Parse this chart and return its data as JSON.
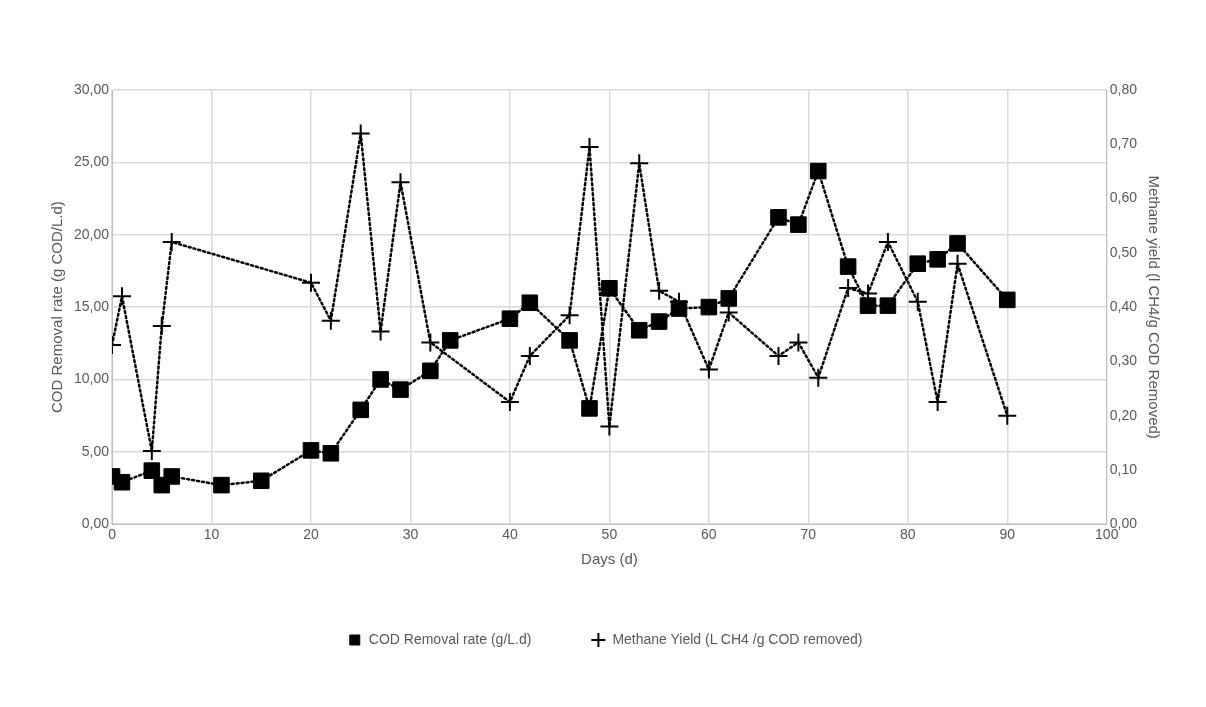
{
  "chart_data": {
    "type": "line",
    "xlabel": "Days (d)",
    "ylabel": "COD Removal rate (g COD/L.d)",
    "y2label": "Methane yield (l CH4/g COD Removed)",
    "xlim": [
      0,
      100
    ],
    "xticks": [
      0,
      10,
      20,
      30,
      40,
      50,
      60,
      70,
      80,
      90,
      100
    ],
    "ylim": [
      0,
      30
    ],
    "yticks": [
      {
        "value": 0,
        "label": "0,00"
      },
      {
        "value": 5,
        "label": "5,00"
      },
      {
        "value": 10,
        "label": "10,00"
      },
      {
        "value": 15,
        "label": "15,00"
      },
      {
        "value": 20,
        "label": "20,00"
      },
      {
        "value": 25,
        "label": "25,00"
      },
      {
        "value": 30,
        "label": "30,00"
      }
    ],
    "y2lim": [
      0,
      0.8
    ],
    "y2ticks": [
      {
        "value": 0,
        "label": "0,00"
      },
      {
        "value": 0.1,
        "label": "0,10"
      },
      {
        "value": 0.2,
        "label": "0,20"
      },
      {
        "value": 0.3,
        "label": "0,30"
      },
      {
        "value": 0.4,
        "label": "0,40"
      },
      {
        "value": 0.5,
        "label": "0,50"
      },
      {
        "value": 0.6,
        "label": "0,60"
      },
      {
        "value": 0.7,
        "label": "0,70"
      },
      {
        "value": 0.8,
        "label": "0,80"
      }
    ],
    "grid": true,
    "legend": "bottom",
    "line_style": "dotted",
    "series": [
      {
        "name": "COD Removal rate (g/L.d)",
        "color": "#000000",
        "marker": "square",
        "x": [
          0,
          1,
          4,
          5,
          6,
          11,
          15,
          20,
          22,
          25,
          27,
          29,
          32,
          34,
          40,
          42,
          46,
          48,
          50,
          53,
          55,
          57,
          60,
          62,
          67,
          69,
          71,
          74,
          76,
          78,
          81,
          83,
          85,
          90
        ],
        "values": [
          3.3,
          2.9,
          3.7,
          2.7,
          3.3,
          2.7,
          3.0,
          5.1,
          4.9,
          7.9,
          10.0,
          9.3,
          10.6,
          12.7,
          14.2,
          15.3,
          12.7,
          8.0,
          16.3,
          13.4,
          14.0,
          14.9,
          15.0,
          15.6,
          21.2,
          20.7,
          24.4,
          17.8,
          15.1,
          15.1,
          18.0,
          18.3,
          19.4,
          15.5
        ]
      },
      {
        "name": "Methane Yield (L CH4 /g COD removed)",
        "color": "#000000",
        "marker": "cross",
        "axis": "y2",
        "x": [
          0,
          1,
          4,
          5,
          6,
          20,
          22,
          25,
          27,
          29,
          32,
          40,
          42,
          46,
          48,
          50,
          53,
          55,
          57,
          60,
          62,
          67,
          69,
          71,
          74,
          76,
          78,
          81,
          83,
          85,
          90
        ],
        "values": [
          0.33,
          0.42,
          0.135,
          0.365,
          0.52,
          0.445,
          0.375,
          0.72,
          0.355,
          0.63,
          0.335,
          0.225,
          0.31,
          0.385,
          0.695,
          0.18,
          0.665,
          0.43,
          0.41,
          0.285,
          0.39,
          0.31,
          0.335,
          0.27,
          0.435,
          0.425,
          0.52,
          0.41,
          0.225,
          0.48,
          0.2
        ]
      }
    ]
  }
}
